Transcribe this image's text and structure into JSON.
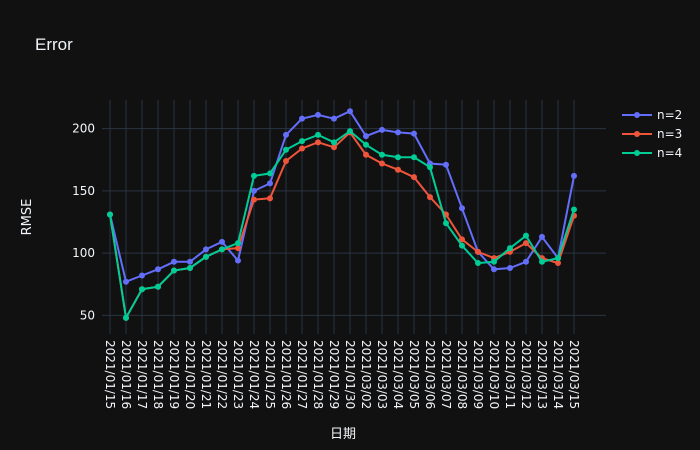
{
  "chart_data": {
    "type": "line",
    "title": "Error",
    "xlabel": "日期",
    "ylabel": "RMSE",
    "ylim": [
      35,
      223
    ],
    "y_ticks": [
      50,
      100,
      150,
      200
    ],
    "grid": true,
    "legend_position": "top-right",
    "background": "#111111",
    "x": [
      "2021/01/15",
      "2021/01/16",
      "2021/01/17",
      "2021/01/18",
      "2021/01/19",
      "2021/01/20",
      "2021/01/21",
      "2021/01/22",
      "2021/01/23",
      "2021/01/24",
      "2021/01/25",
      "2021/01/26",
      "2021/01/27",
      "2021/01/28",
      "2021/01/29",
      "2021/01/30",
      "2021/03/02",
      "2021/03/03",
      "2021/03/04",
      "2021/03/05",
      "2021/03/06",
      "2021/03/07",
      "2021/03/08",
      "2021/03/09",
      "2021/03/10",
      "2021/03/11",
      "2021/03/12",
      "2021/03/13",
      "2021/03/14",
      "2021/03/15"
    ],
    "series": [
      {
        "name": "n=2",
        "color": "#636efa",
        "values": [
          131,
          77,
          82,
          87,
          93,
          93,
          103,
          109,
          94,
          150,
          156,
          195,
          208,
          211,
          208,
          214,
          194,
          199,
          197,
          196,
          172,
          171,
          136,
          101,
          87,
          88,
          93,
          113,
          96,
          162
        ]
      },
      {
        "name": "n=3",
        "color": "#ef553b",
        "values": [
          131,
          48,
          71,
          73,
          86,
          88,
          97,
          103,
          104,
          143,
          144,
          174,
          184,
          189,
          185,
          197,
          179,
          172,
          167,
          161,
          145,
          131,
          111,
          101,
          96,
          101,
          108,
          96,
          92,
          130
        ]
      },
      {
        "name": "n=4",
        "color": "#00cc96",
        "values": [
          131,
          48,
          71,
          73,
          86,
          88,
          97,
          103,
          108,
          162,
          164,
          183,
          190,
          195,
          189,
          198,
          187,
          179,
          177,
          177,
          169,
          124,
          106,
          92,
          93,
          104,
          114,
          93,
          96,
          135
        ]
      }
    ]
  }
}
